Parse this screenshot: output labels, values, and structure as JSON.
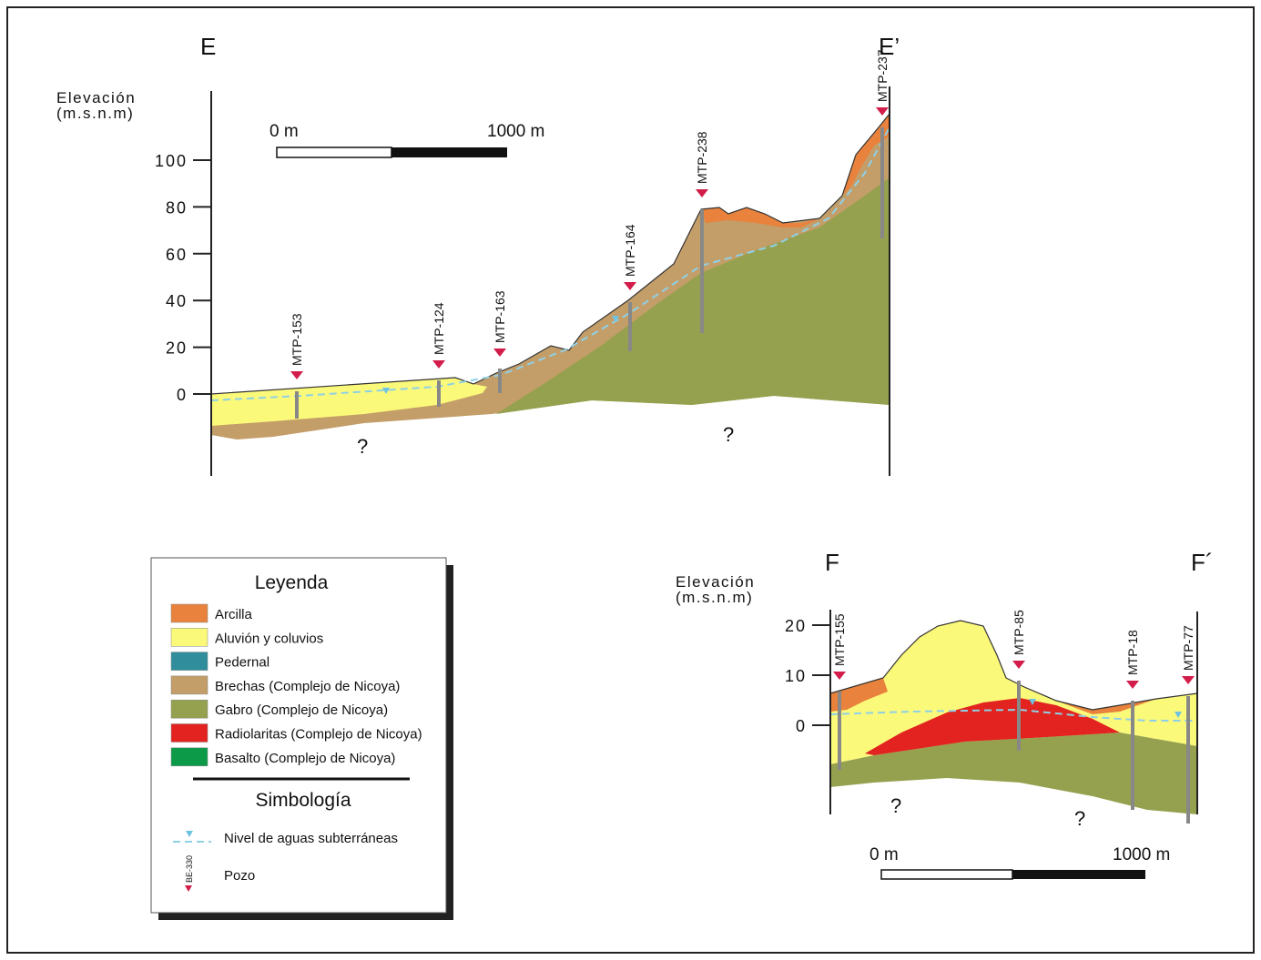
{
  "section_e": {
    "start_label": "E",
    "end_label": "E’",
    "axis_title": [
      "Elevación",
      "(m.s.n.m)"
    ],
    "yticks": [
      100,
      80,
      60,
      40,
      20,
      0
    ],
    "scale": {
      "start": "0 m",
      "end": "1000 m"
    },
    "wells": [
      "MTP-153",
      "MTP-124",
      "MTP-163",
      "MTP-164",
      "MTP-238",
      "MTP-237"
    ],
    "unknowns": [
      "?",
      "?"
    ]
  },
  "section_f": {
    "start_label": "F",
    "end_label": "F´",
    "axis_title": [
      "Elevación",
      "(m.s.n.m)"
    ],
    "yticks": [
      20,
      10,
      0
    ],
    "scale": {
      "start": "0 m",
      "end": "1000 m"
    },
    "wells": [
      "MTP-155",
      "MTP-85",
      "MTP-18",
      "MTP-77"
    ],
    "unknowns": [
      "?",
      "?"
    ]
  },
  "legend": {
    "title": "Leyenda",
    "items": [
      {
        "label": "Arcilla",
        "color": "#e8823c"
      },
      {
        "label": "Aluvión y coluvios",
        "color": "#fbf97a"
      },
      {
        "label": "Pedernal",
        "color": "#2f8d9c"
      },
      {
        "label": "Brechas (Complejo de Nicoya)",
        "color": "#c49e69"
      },
      {
        "label": "Gabro (Complejo de Nicoya)",
        "color": "#95a14e"
      },
      {
        "label": "Radiolaritas (Complejo de Nicoya)",
        "color": "#e2231f"
      },
      {
        "label": "Basalto (Complejo de Nicoya)",
        "color": "#0c9a48"
      }
    ],
    "symbology_title": "Simbología",
    "symbols": [
      "Nivel de aguas subterráneas",
      "Pozo"
    ],
    "well_example": "BE-330"
  }
}
